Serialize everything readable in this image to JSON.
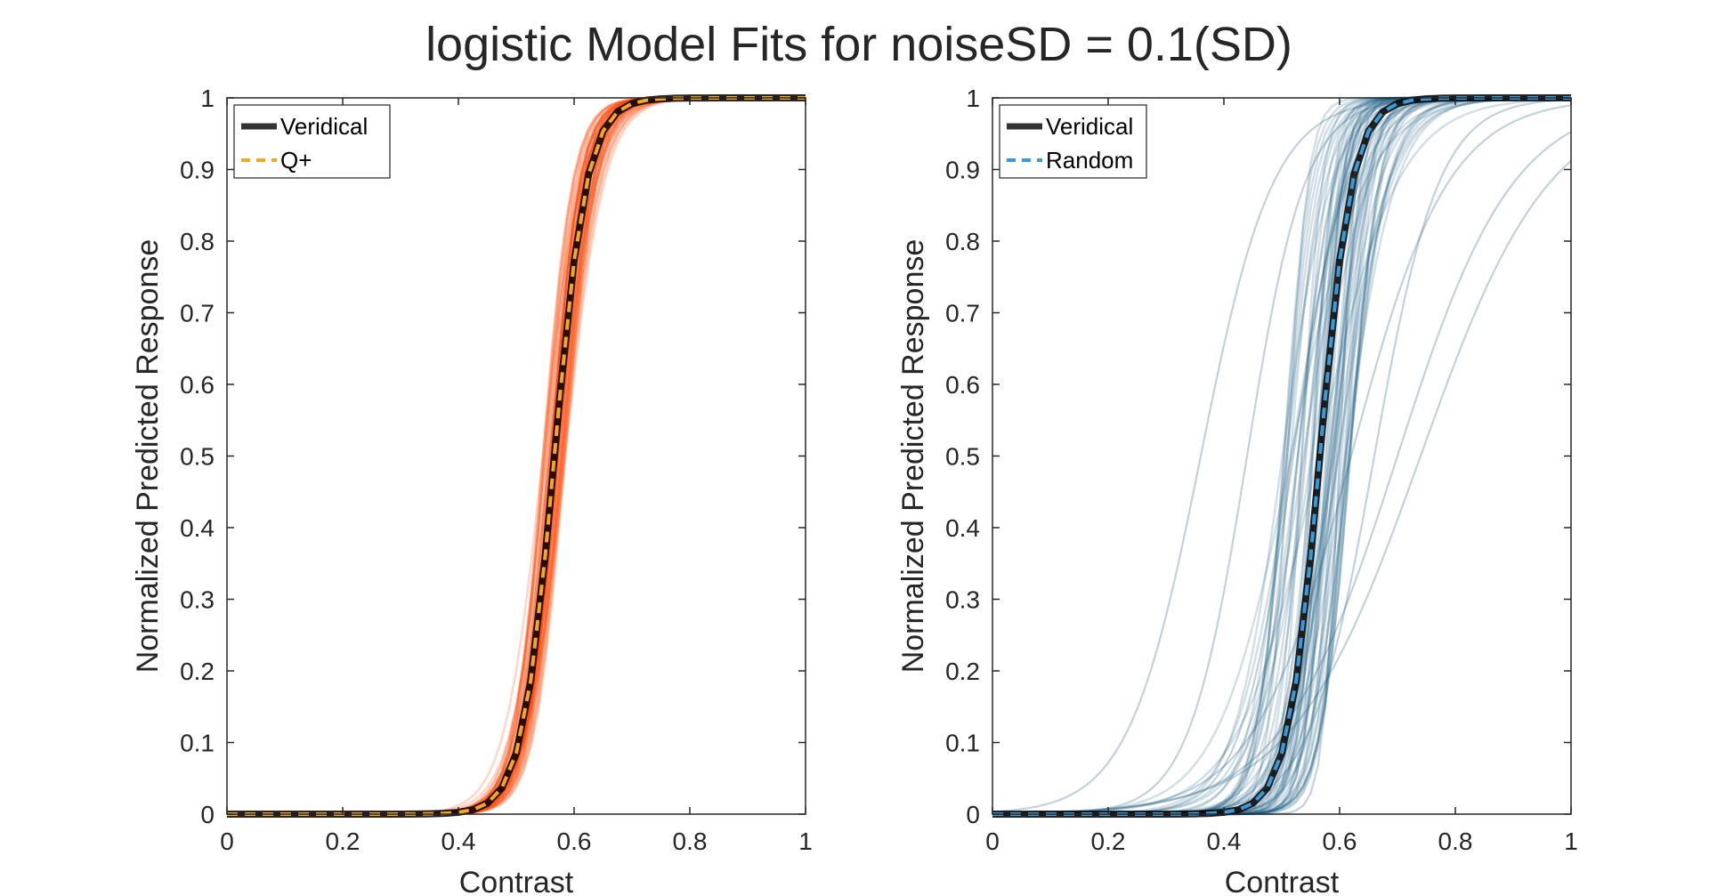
{
  "figure": {
    "title": "logistic Model Fits for noiseSD = 0.1(SD)"
  },
  "chart_data": [
    {
      "type": "line",
      "xlabel": "Contrast",
      "ylabel": "Normalized Predicted Response",
      "xlim": [
        0,
        1
      ],
      "ylim": [
        0,
        1
      ],
      "xticks": [
        "0",
        "0.2",
        "0.4",
        "0.6",
        "0.8",
        "1"
      ],
      "yticks": [
        "0",
        "0.1",
        "0.2",
        "0.3",
        "0.4",
        "0.5",
        "0.6",
        "0.7",
        "0.8",
        "0.9",
        "1"
      ],
      "legend_position": "top-left",
      "grid": false,
      "ensemble_color": "#ff4500",
      "ensemble": {
        "count": 60,
        "form": "logistic",
        "midpoint_range": [
          0.545,
          0.585
        ],
        "slope_range": [
          30,
          42
        ]
      },
      "series": [
        {
          "name": "Veridical",
          "style": "solid",
          "color": "#000000",
          "midpoint": 0.566,
          "slope": 36
        },
        {
          "name": "Q+",
          "style": "dashed",
          "color": "#f5a623",
          "midpoint": 0.566,
          "slope": 36
        }
      ]
    },
    {
      "type": "line",
      "xlabel": "Contrast",
      "ylabel": "Normalized Predicted Response",
      "xlim": [
        0,
        1
      ],
      "ylim": [
        0,
        1
      ],
      "xticks": [
        "0",
        "0.2",
        "0.4",
        "0.6",
        "0.8",
        "1"
      ],
      "yticks": [
        "0",
        "0.1",
        "0.2",
        "0.3",
        "0.4",
        "0.5",
        "0.6",
        "0.7",
        "0.8",
        "0.9",
        "1"
      ],
      "legend_position": "top-left",
      "grid": false,
      "ensemble_color": "#1f5f82",
      "ensemble": {
        "count": 60,
        "form": "logistic",
        "midpoint_range": [
          0.5,
          0.62
        ],
        "slope_range": [
          14,
          60
        ],
        "outliers": [
          {
            "midpoint": 0.36,
            "slope": 16
          },
          {
            "midpoint": 0.44,
            "slope": 20
          },
          {
            "midpoint": 0.62,
            "slope": 12
          },
          {
            "midpoint": 0.7,
            "slope": 10
          },
          {
            "midpoint": 0.74,
            "slope": 9
          },
          {
            "midpoint": 0.52,
            "slope": 22
          },
          {
            "midpoint": 0.6,
            "slope": 70
          },
          {
            "midpoint": 0.66,
            "slope": 18
          }
        ]
      },
      "series": [
        {
          "name": "Veridical",
          "style": "solid",
          "color": "#000000",
          "midpoint": 0.566,
          "slope": 36
        },
        {
          "name": "Random",
          "style": "dashed",
          "color": "#3a9ad9",
          "midpoint": 0.566,
          "slope": 36
        }
      ]
    }
  ]
}
